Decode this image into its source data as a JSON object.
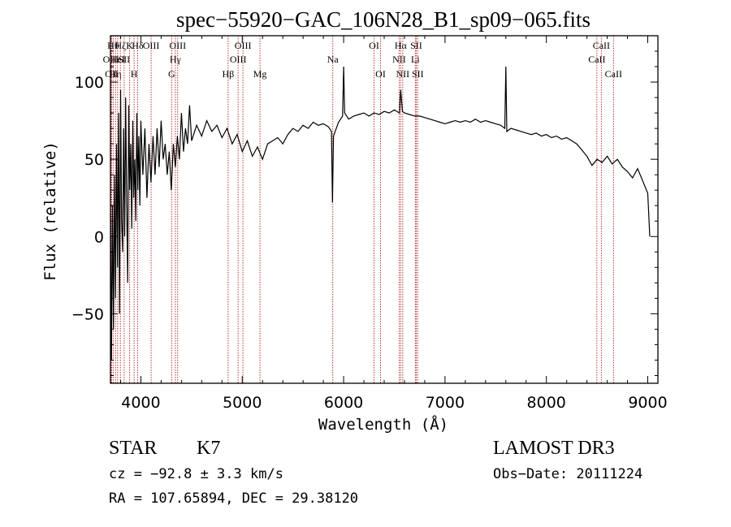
{
  "chart_data": {
    "type": "line",
    "title": "spec−55920−GAC_106N28_B1_sp09−065.fits",
    "xlabel": "Wavelength (Å)",
    "ylabel": "Flux (relative)",
    "xlim": [
      3700,
      9100
    ],
    "ylim": [
      -95,
      130
    ],
    "xticks": [
      4000,
      5000,
      6000,
      7000,
      8000,
      9000
    ],
    "xtick_labels": [
      "4000",
      "5000",
      "6000",
      "7000",
      "8000",
      "9000"
    ],
    "yticks": [
      -50,
      0,
      50,
      100
    ],
    "ytick_labels": [
      "−50",
      "0",
      "50",
      "100"
    ],
    "series": [
      {
        "name": "flux",
        "points": [
          [
            3700,
            15
          ],
          [
            3710,
            -80
          ],
          [
            3720,
            20
          ],
          [
            3730,
            -60
          ],
          [
            3740,
            40
          ],
          [
            3750,
            -40
          ],
          [
            3760,
            60
          ],
          [
            3770,
            -20
          ],
          [
            3780,
            80
          ],
          [
            3790,
            -50
          ],
          [
            3800,
            95
          ],
          [
            3810,
            10
          ],
          [
            3820,
            -10
          ],
          [
            3830,
            70
          ],
          [
            3840,
            0
          ],
          [
            3850,
            90
          ],
          [
            3860,
            20
          ],
          [
            3870,
            -30
          ],
          [
            3880,
            85
          ],
          [
            3890,
            30
          ],
          [
            3900,
            60
          ],
          [
            3910,
            5
          ],
          [
            3920,
            75
          ],
          [
            3930,
            25
          ],
          [
            3940,
            50
          ],
          [
            3950,
            10
          ],
          [
            3960,
            80
          ],
          [
            3970,
            30
          ],
          [
            3980,
            65
          ],
          [
            3990,
            20
          ],
          [
            4000,
            75
          ],
          [
            4020,
            40
          ],
          [
            4040,
            70
          ],
          [
            4060,
            25
          ],
          [
            4080,
            60
          ],
          [
            4100,
            35
          ],
          [
            4120,
            65
          ],
          [
            4140,
            40
          ],
          [
            4160,
            70
          ],
          [
            4180,
            45
          ],
          [
            4200,
            75
          ],
          [
            4220,
            50
          ],
          [
            4240,
            60
          ],
          [
            4260,
            40
          ],
          [
            4280,
            55
          ],
          [
            4300,
            30
          ],
          [
            4320,
            60
          ],
          [
            4340,
            45
          ],
          [
            4360,
            65
          ],
          [
            4380,
            50
          ],
          [
            4400,
            80
          ],
          [
            4420,
            55
          ],
          [
            4440,
            70
          ],
          [
            4460,
            60
          ],
          [
            4480,
            85
          ],
          [
            4500,
            62
          ],
          [
            4550,
            72
          ],
          [
            4600,
            65
          ],
          [
            4650,
            75
          ],
          [
            4700,
            68
          ],
          [
            4750,
            72
          ],
          [
            4800,
            64
          ],
          [
            4850,
            70
          ],
          [
            4900,
            60
          ],
          [
            4950,
            66
          ],
          [
            5000,
            55
          ],
          [
            5050,
            62
          ],
          [
            5100,
            52
          ],
          [
            5150,
            58
          ],
          [
            5200,
            50
          ],
          [
            5250,
            60
          ],
          [
            5300,
            62
          ],
          [
            5350,
            64
          ],
          [
            5400,
            60
          ],
          [
            5450,
            66
          ],
          [
            5500,
            70
          ],
          [
            5550,
            68
          ],
          [
            5600,
            72
          ],
          [
            5650,
            70
          ],
          [
            5700,
            74
          ],
          [
            5750,
            72
          ],
          [
            5800,
            73
          ],
          [
            5850,
            71
          ],
          [
            5880,
            68
          ],
          [
            5890,
            22
          ],
          [
            5900,
            65
          ],
          [
            5950,
            74
          ],
          [
            5990,
            78
          ],
          [
            6000,
            110
          ],
          [
            6010,
            80
          ],
          [
            6050,
            76
          ],
          [
            6100,
            78
          ],
          [
            6150,
            79
          ],
          [
            6200,
            80
          ],
          [
            6250,
            78
          ],
          [
            6300,
            80
          ],
          [
            6350,
            79
          ],
          [
            6400,
            81
          ],
          [
            6450,
            80
          ],
          [
            6500,
            82
          ],
          [
            6550,
            80
          ],
          [
            6563,
            95
          ],
          [
            6580,
            81
          ],
          [
            6600,
            80
          ],
          [
            6650,
            79
          ],
          [
            6700,
            78
          ],
          [
            6750,
            78
          ],
          [
            6800,
            77
          ],
          [
            6850,
            76
          ],
          [
            6900,
            75
          ],
          [
            6950,
            74
          ],
          [
            7000,
            73
          ],
          [
            7050,
            74
          ],
          [
            7100,
            75
          ],
          [
            7150,
            74
          ],
          [
            7200,
            75
          ],
          [
            7250,
            74
          ],
          [
            7300,
            76
          ],
          [
            7350,
            74
          ],
          [
            7400,
            75
          ],
          [
            7450,
            74
          ],
          [
            7500,
            73
          ],
          [
            7550,
            72
          ],
          [
            7590,
            70
          ],
          [
            7600,
            110
          ],
          [
            7610,
            68
          ],
          [
            7650,
            70
          ],
          [
            7700,
            69
          ],
          [
            7750,
            68
          ],
          [
            7800,
            67
          ],
          [
            7850,
            66
          ],
          [
            7900,
            67
          ],
          [
            7950,
            65
          ],
          [
            8000,
            66
          ],
          [
            8050,
            64
          ],
          [
            8100,
            65
          ],
          [
            8150,
            63
          ],
          [
            8200,
            64
          ],
          [
            8250,
            62
          ],
          [
            8300,
            60
          ],
          [
            8350,
            56
          ],
          [
            8400,
            52
          ],
          [
            8450,
            46
          ],
          [
            8500,
            50
          ],
          [
            8550,
            48
          ],
          [
            8600,
            52
          ],
          [
            8650,
            47
          ],
          [
            8700,
            50
          ],
          [
            8750,
            45
          ],
          [
            8800,
            42
          ],
          [
            8850,
            38
          ],
          [
            8900,
            44
          ],
          [
            8950,
            36
          ],
          [
            9000,
            28
          ],
          [
            9020,
            0
          ]
        ]
      }
    ],
    "line_markers": [
      {
        "wl": 3704,
        "label": "O II",
        "row": 1
      },
      {
        "wl": 3712,
        "label": "OII",
        "row": 0
      },
      {
        "wl": 3727,
        "label": "Hθ",
        "row": 2
      },
      {
        "wl": 3750,
        "label": "Hη",
        "row": 0
      },
      {
        "wl": 3771,
        "label": "HeI",
        "row": 1
      },
      {
        "wl": 3798,
        "label": "Hζ",
        "row": 2
      },
      {
        "wl": 3835,
        "label": "SII",
        "row": 1
      },
      {
        "wl": 3889,
        "label": "K",
        "row": 2
      },
      {
        "wl": 3933,
        "label": "H",
        "row": 0
      },
      {
        "wl": 3968,
        "label": "Hδ",
        "row": 2
      },
      {
        "wl": 4101,
        "label": "OIII",
        "row": 2
      },
      {
        "wl": 4304,
        "label": "G",
        "row": 0
      },
      {
        "wl": 4340,
        "label": "Hγ",
        "row": 1
      },
      {
        "wl": 4363,
        "label": "OIII",
        "row": 2
      },
      {
        "wl": 4861,
        "label": "Hβ",
        "row": 0
      },
      {
        "wl": 4959,
        "label": "OIII",
        "row": 1
      },
      {
        "wl": 5007,
        "label": "OIII",
        "row": 2
      },
      {
        "wl": 5175,
        "label": "Mg",
        "row": 0
      },
      {
        "wl": 5893,
        "label": "Na",
        "row": 1
      },
      {
        "wl": 6300,
        "label": "OI",
        "row": 2
      },
      {
        "wl": 6364,
        "label": "OI",
        "row": 0
      },
      {
        "wl": 6548,
        "label": "NII",
        "row": 1
      },
      {
        "wl": 6563,
        "label": "Hα",
        "row": 2
      },
      {
        "wl": 6583,
        "label": "NII",
        "row": 0
      },
      {
        "wl": 6707,
        "label": "Li",
        "row": 1
      },
      {
        "wl": 6716,
        "label": "SII",
        "row": 2
      },
      {
        "wl": 6731,
        "label": "SII",
        "row": 0
      },
      {
        "wl": 8498,
        "label": "CaII",
        "row": 1
      },
      {
        "wl": 8542,
        "label": "CaII",
        "row": 2
      },
      {
        "wl": 8662,
        "label": "CaII",
        "row": 0
      }
    ]
  },
  "info": {
    "object_class": "STAR",
    "subclass": "K7",
    "survey": "LAMOST DR3",
    "cz": "cz = −92.8 ± 3.3 km/s",
    "obs_date": "Obs−Date: 20111224",
    "coords": "RA = 107.65894, DEC =  29.38120"
  },
  "colors": {
    "marker": "#b22222",
    "spectrum": "#000000"
  }
}
